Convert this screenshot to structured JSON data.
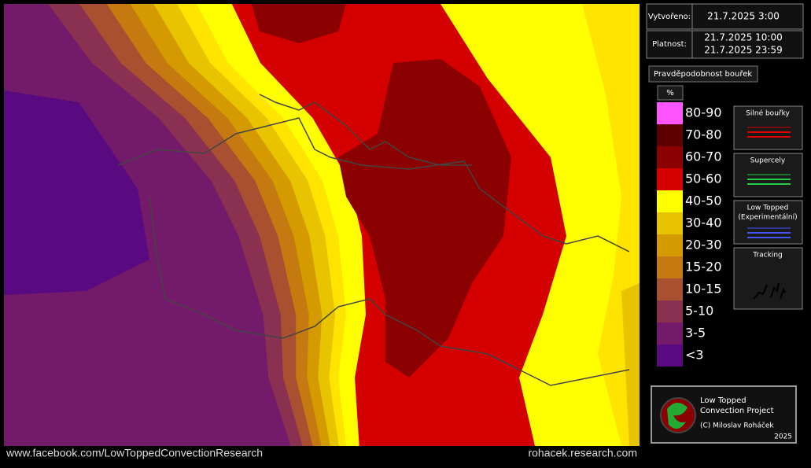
{
  "header": {
    "created_label": "Vytvořeno:",
    "created": "21.7.2025 3:00",
    "valid_label": "Platnost:",
    "valid_from": "21.7.2025 10:00",
    "valid_to": "21.7.2025 23:59"
  },
  "legend": {
    "title": "Pravděpodobnost bouřek",
    "unit": "%",
    "classes": [
      {
        "label": "80-90",
        "color": "#ff55ff"
      },
      {
        "label": "70-80",
        "color": "#5e0000"
      },
      {
        "label": "60-70",
        "color": "#8b0000"
      },
      {
        "label": "50-60",
        "color": "#d40000"
      },
      {
        "label": "40-50",
        "color": "#ffff00"
      },
      {
        "label": "30-40",
        "color": "#e8c400"
      },
      {
        "label": "20-30",
        "color": "#d49a00"
      },
      {
        "label": "15-20",
        "color": "#c47a10"
      },
      {
        "label": "10-15",
        "color": "#a85030"
      },
      {
        "label": "5-10",
        "color": "#8a3050"
      },
      {
        "label": "3-5",
        "color": "#741a6a"
      },
      {
        "label": "<3",
        "color": "#5a0a80"
      }
    ]
  },
  "tracks": [
    {
      "label": [
        "Silné bouřky"
      ],
      "color": "#e00000"
    },
    {
      "label": [
        "Supercely"
      ],
      "color": "#22cc44"
    },
    {
      "label": [
        "Low Topped",
        "(Experimentální)"
      ],
      "color": "#4455ff"
    },
    {
      "label": [
        "Tracking"
      ],
      "color": "#000000"
    }
  ],
  "footer": {
    "left": "www.facebook.com/LowToppedConvectionResearch",
    "right": "rohacek.research.com"
  },
  "credit": {
    "line1": "Low Topped",
    "line2": "Convection Project",
    "line3": "(C) Miloslav Roháček",
    "year": "2025"
  }
}
